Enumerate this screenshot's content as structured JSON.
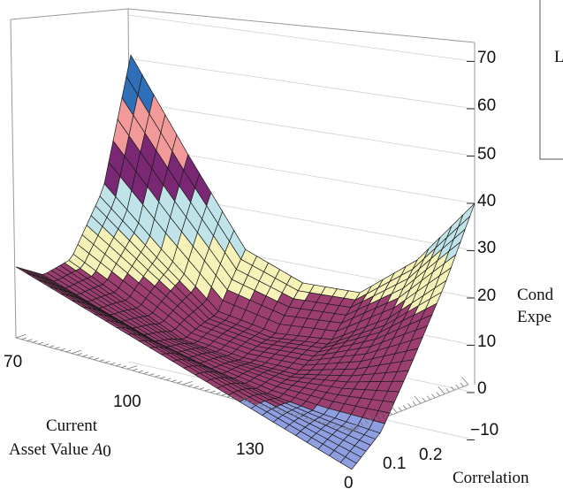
{
  "chart_data": {
    "type": "surface3d",
    "title": "",
    "x_axis": {
      "label_line1": "Current",
      "label_line2": "Asset Value ",
      "label_symbol": "A",
      "label_sub": "0",
      "ticks": [
        "70",
        "100",
        "130"
      ],
      "range": [
        60,
        150
      ]
    },
    "y_axis": {
      "label": "Correlation",
      "ticks": [
        "0",
        "0.1",
        "0.2"
      ],
      "range": [
        0,
        0.25
      ]
    },
    "z_axis": {
      "label_line1": "Cond",
      "label_line2": "Expe",
      "ticks": [
        "70",
        "60",
        "50",
        "40",
        "30",
        "20",
        "10",
        "0",
        "−10"
      ],
      "range": [
        -10,
        70
      ]
    },
    "legend_fragment": "L",
    "surface_edges": {
      "back_edge_correlation_0_25": [
        {
          "x": 60,
          "z": 71
        },
        {
          "x": 75,
          "z": 50
        },
        {
          "x": 90,
          "z": 30
        },
        {
          "x": 105,
          "z": 23
        },
        {
          "x": 120,
          "z": 21
        },
        {
          "x": 135,
          "z": 28
        },
        {
          "x": 150,
          "z": 40
        }
      ],
      "left_edge_asset_60": [
        {
          "y": 0.25,
          "z": 71
        },
        {
          "y": 0.19,
          "z": 40
        },
        {
          "y": 0.12,
          "z": 22
        },
        {
          "y": 0.06,
          "z": 16
        },
        {
          "y": 0.0,
          "z": 15
        }
      ],
      "right_edge_asset_150": [
        {
          "y": 0.25,
          "z": 40
        },
        {
          "y": 0.19,
          "z": 25
        },
        {
          "y": 0.12,
          "z": 10
        },
        {
          "y": 0.06,
          "z": -2
        },
        {
          "y": 0.0,
          "z": -8
        }
      ]
    },
    "color_bands": [
      {
        "z_from": -10,
        "z_to": 0,
        "color": "#8f9ee0"
      },
      {
        "z_from": 0,
        "z_to": 20,
        "color": "#9c3f70"
      },
      {
        "z_from": 20,
        "z_to": 30,
        "color": "#f6f2b8"
      },
      {
        "z_from": 30,
        "z_to": 40,
        "color": "#bfe3e8"
      },
      {
        "z_from": 40,
        "z_to": 50,
        "color": "#7a2873"
      },
      {
        "z_from": 50,
        "z_to": 60,
        "color": "#f29a9a"
      },
      {
        "z_from": 60,
        "z_to": 70,
        "color": "#2f6fb8"
      }
    ],
    "grid": true,
    "legend": "top-right"
  }
}
